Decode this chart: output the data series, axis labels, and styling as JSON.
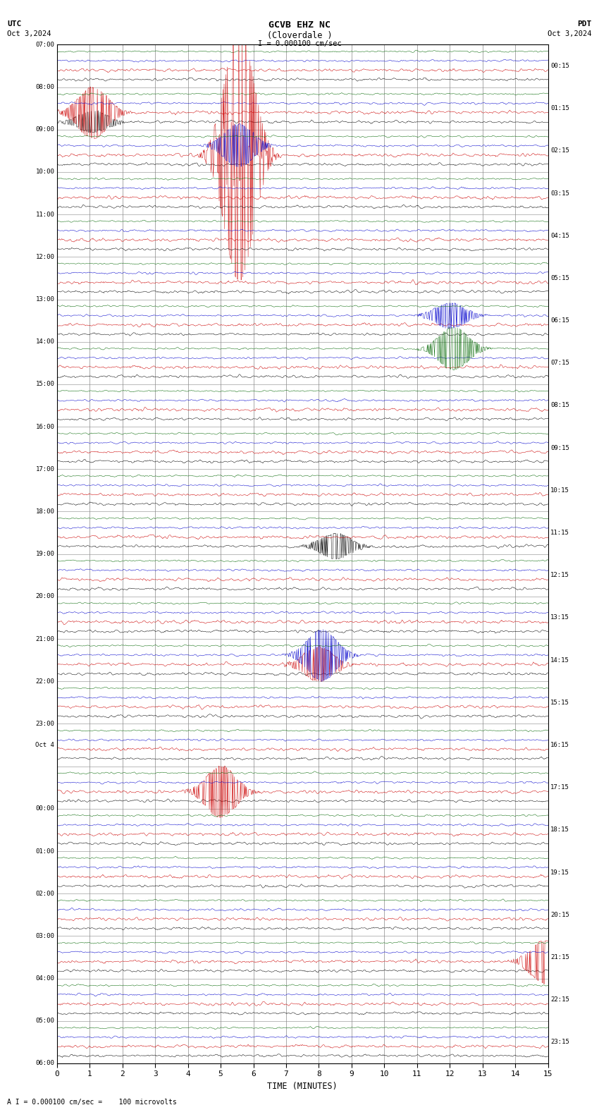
{
  "title_line1": "GCVB EHZ NC",
  "title_line2": "(Cloverdale )",
  "scale_label": "I = 0.000100 cm/sec",
  "left_top_label": "UTC",
  "left_date_label": "Oct 3,2024",
  "right_top_label": "PDT",
  "right_date_label": "Oct 3,2024",
  "bottom_label": "TIME (MINUTES)",
  "footer_label": "A I = 0.000100 cm/sec =    100 microvolts",
  "xlabel_ticks": [
    0,
    1,
    2,
    3,
    4,
    5,
    6,
    7,
    8,
    9,
    10,
    11,
    12,
    13,
    14,
    15
  ],
  "n_groups": 24,
  "colors_per_group": [
    "#000000",
    "#cc0000",
    "#0000cc",
    "#006600"
  ],
  "bg_color": "#ffffff",
  "grid_color": "#888888",
  "text_color": "#000000",
  "noise_amp": 0.035,
  "left_labels_utc": [
    "07:00",
    "08:00",
    "09:00",
    "10:00",
    "11:00",
    "12:00",
    "13:00",
    "14:00",
    "15:00",
    "16:00",
    "17:00",
    "18:00",
    "19:00",
    "20:00",
    "21:00",
    "22:00",
    "23:00",
    "Oct 4",
    "00:00",
    "01:00",
    "02:00",
    "03:00",
    "04:00",
    "05:00",
    "06:00"
  ],
  "right_labels_pdt": [
    "00:15",
    "01:15",
    "02:15",
    "03:15",
    "04:15",
    "05:15",
    "06:15",
    "07:15",
    "08:15",
    "09:15",
    "10:15",
    "11:15",
    "12:15",
    "13:15",
    "14:15",
    "15:15",
    "16:15",
    "17:15",
    "18:15",
    "19:15",
    "20:15",
    "21:15",
    "22:15",
    "23:15"
  ],
  "fig_width": 8.5,
  "fig_height": 15.84,
  "dpi": 100
}
